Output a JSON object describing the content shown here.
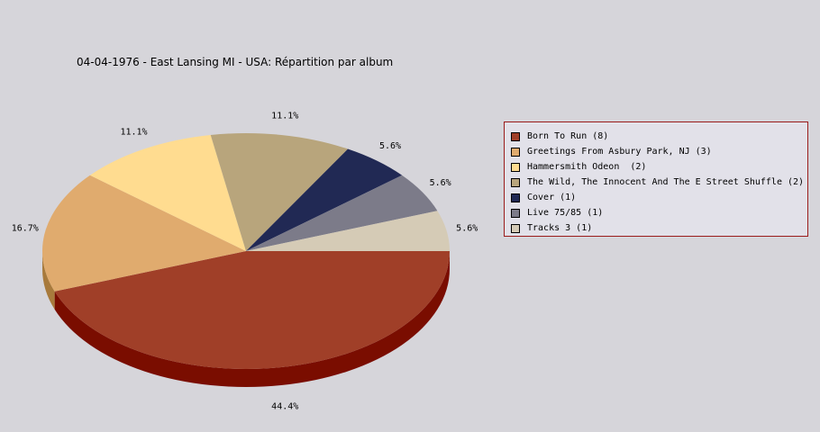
{
  "chart_data": {
    "type": "pie",
    "title": "04-04-1976 - East Lansing MI - USA:  Répartition par album",
    "slices": [
      {
        "label": "Born To Run (8)",
        "value": 8,
        "percent_label": "44.4%",
        "color": "#a03f28",
        "side_color": "#7a0d00"
      },
      {
        "label": "Greetings From Asbury Park, NJ (3)",
        "value": 3,
        "percent_label": "16.7%",
        "color": "#e0ab6e",
        "side_color": "#a87a3c"
      },
      {
        "label": "Hammersmith Odeon  (2)",
        "value": 2,
        "percent_label": "11.1%",
        "color": "#ffdc90",
        "side_color": "#c7a660"
      },
      {
        "label": "The Wild, The Innocent And The E Street Shuffle (2)",
        "value": 2,
        "percent_label": "11.1%",
        "color": "#b8a57c",
        "side_color": "#857552"
      },
      {
        "label": "Cover (1)",
        "value": 1,
        "percent_label": "5.6%",
        "color": "#212954",
        "side_color": "#10153a"
      },
      {
        "label": "Live 75/85 (1)",
        "value": 1,
        "percent_label": "5.6%",
        "color": "#7c7b89",
        "side_color": "#55545f"
      },
      {
        "label": "Tracks 3 (1)",
        "value": 1,
        "percent_label": "5.6%",
        "color": "#d5cbb6",
        "side_color": "#a39a85"
      }
    ],
    "legend_position": "right",
    "legend_border_color": "#9a1b1b",
    "background": "#d6d5da"
  }
}
